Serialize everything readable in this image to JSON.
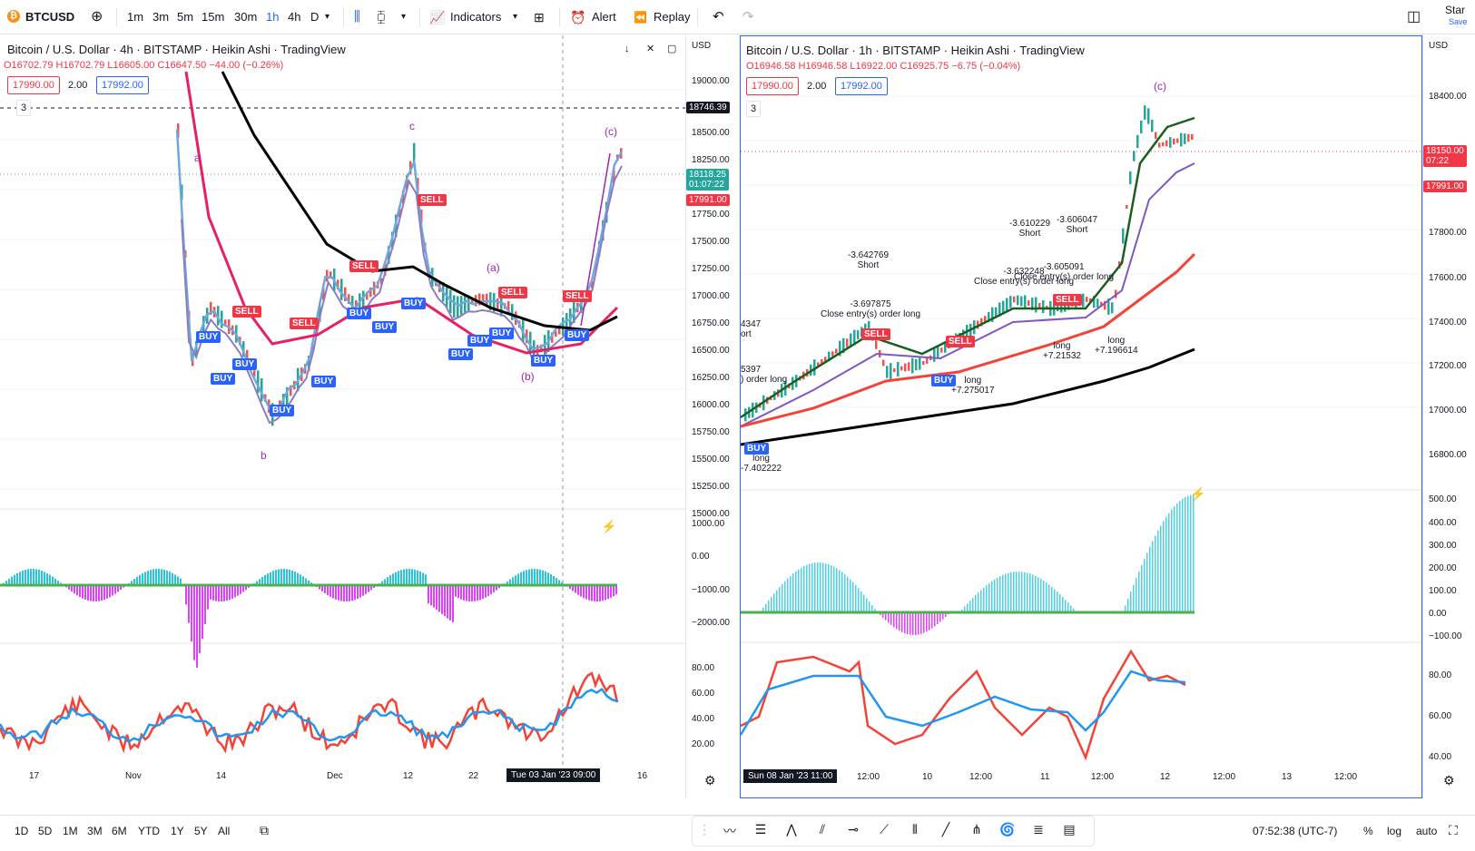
{
  "topbar": {
    "symbol": "BTCUSD",
    "intervals": [
      "1m",
      "3m",
      "5m",
      "15m",
      "30m",
      "1h",
      "4h",
      "D"
    ],
    "active_interval": "1h",
    "indicators_label": "Indicators",
    "alert_label": "Alert",
    "replay_label": "Replay",
    "right_label_1": "Star",
    "right_label_2": "Save"
  },
  "left_chart": {
    "title": "Bitcoin / U.S. Dollar · 4h · BITSTAMP · Heikin Ashi · TradingView",
    "ohlc": {
      "o": "O16702.79",
      "h": "H16702.79",
      "l": "L16605.00",
      "c": "C16647.50",
      "chg": "−44.00 (−0.26%)"
    },
    "sell_price": "17990.00",
    "spread": "2.00",
    "buy_price": "17992.00",
    "indicator_count": "3",
    "currency": "USD",
    "price_ticks": [
      "19000.00",
      "18500.00",
      "18250.00",
      "17750.00",
      "17500.00",
      "17250.00",
      "17000.00",
      "16750.00",
      "16500.00",
      "16250.00",
      "16000.00",
      "15750.00",
      "15500.00",
      "15250.00",
      "15000.00"
    ],
    "crosshair_price": "18746.39",
    "last_price": "18118.25\n01:07:22",
    "bid_price": "17991.00",
    "osc_ticks": [
      "1000.00",
      "0.00",
      "−1000.00",
      "−2000.00"
    ],
    "rsi_ticks": [
      "80.00",
      "60.00",
      "40.00",
      "20.00"
    ],
    "x_labels": [
      "17",
      "Nov",
      "14",
      "Dec",
      "12",
      "22",
      "16"
    ],
    "x_cursor": "Tue 03 Jan '23   09:00",
    "waves": [
      "a",
      "b",
      "c",
      "(a)",
      "(b)",
      "(c)"
    ],
    "signals": {
      "buy": "BUY",
      "sell": "SELL"
    }
  },
  "right_chart": {
    "title": "Bitcoin / U.S. Dollar · 1h · BITSTAMP · Heikin Ashi · TradingView",
    "ohlc": {
      "o": "O16946.58",
      "h": "H16946.58",
      "l": "L16922.00",
      "c": "C16925.75",
      "chg": "−6.75 (−0.04%)"
    },
    "sell_price": "17990.00",
    "spread": "2.00",
    "buy_price": "17992.00",
    "indicator_count": "3",
    "currency": "USD",
    "price_ticks": [
      "18400.00",
      "18200.00",
      "17800.00",
      "17600.00",
      "17400.00",
      "17200.00",
      "17000.00",
      "16800.00"
    ],
    "last_price": "18150.00\n07:22",
    "bid_price": "17991.00",
    "osc_ticks": [
      "500.00",
      "400.00",
      "300.00",
      "200.00",
      "100.00",
      "0.00",
      "−100.00"
    ],
    "rsi_ticks": [
      "80.00",
      "60.00",
      "40.00"
    ],
    "x_labels": [
      "12:00",
      "10",
      "12:00",
      "11",
      "12:00",
      "12",
      "12:00",
      "13",
      "12:00"
    ],
    "x_cursor": "Sun 08 Jan '23   11:00",
    "wave_c": "(c)",
    "notes": [
      {
        "l1": "-3.642769",
        "l2": "Short"
      },
      {
        "l1": "-3.697875",
        "l2": "Close entry(s) order long"
      },
      {
        "l1": "-3.610229",
        "l2": "Short"
      },
      {
        "l1": "-3.606047",
        "l2": "Short"
      },
      {
        "l1": "-3.632248",
        "l2": "Close entry(s) order long"
      },
      {
        "l1": "-3.605091",
        "l2": "Close entry(s) order long"
      },
      {
        "l1": "long",
        "l2": "+7.21532"
      },
      {
        "l1": "long",
        "l2": "+7.196614"
      },
      {
        "l1": "long",
        "l2": "+7.275017"
      },
      {
        "l1": "long",
        "l2": "-7.402222"
      },
      {
        "l1": "4347",
        "l2": "ort"
      },
      {
        "l1": "5397",
        "l2": ") order long"
      }
    ]
  },
  "bottombar": {
    "ranges": [
      "1D",
      "5D",
      "1M",
      "3M",
      "6M",
      "YTD",
      "1Y",
      "5Y",
      "All"
    ],
    "clock": "07:52:38 (UTC-7)",
    "percent": "%",
    "log": "log",
    "auto": "auto"
  }
}
